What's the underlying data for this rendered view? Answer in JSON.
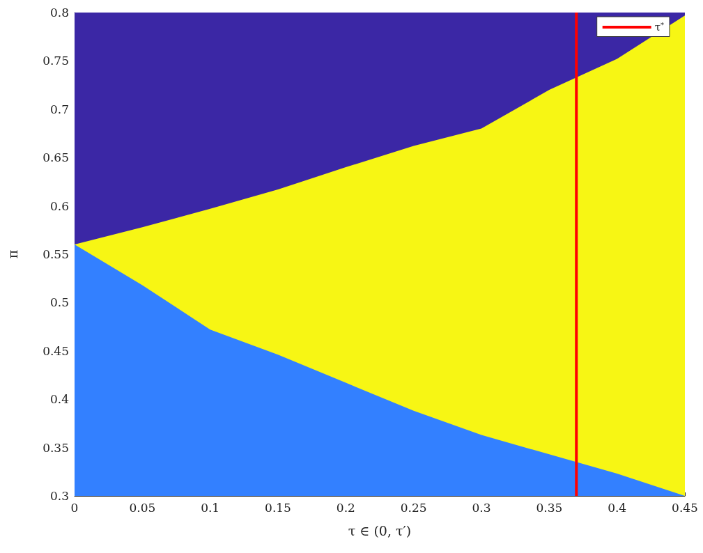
{
  "chart_data": {
    "type": "area",
    "xlabel": "τ ∈ (0, τ′)",
    "ylabel": "π",
    "x": [
      0,
      0.05,
      0.1,
      0.15,
      0.2,
      0.25,
      0.3,
      0.35,
      0.4,
      0.45
    ],
    "series": [
      {
        "color": "#3b27a5",
        "values": [
          0.8,
          0.8,
          0.8,
          0.8,
          0.8,
          0.8,
          0.8,
          0.8,
          0.8,
          0.8
        ]
      },
      {
        "color": "#f7f614",
        "values": [
          0.56,
          0.578,
          0.597,
          0.617,
          0.64,
          0.662,
          0.68,
          0.72,
          0.752,
          0.797
        ]
      },
      {
        "color": "#3380ff",
        "values": [
          0.56,
          0.518,
          0.472,
          0.446,
          0.417,
          0.388,
          0.363,
          0.343,
          0.323,
          0.3
        ]
      },
      {
        "type": "line",
        "name": "τ$^{*}$",
        "color": "#ff0000",
        "x": [
          0.37,
          0.37
        ],
        "values": [
          0.3,
          0.8
        ]
      }
    ],
    "xlim": [
      0,
      0.45
    ],
    "xticks": [
      0,
      0.05,
      0.1,
      0.15,
      0.2,
      0.25,
      0.3,
      0.35,
      0.4,
      0.45
    ],
    "ylim": [
      0.3,
      0.8
    ],
    "yticks": [
      0.3,
      0.35,
      0.4,
      0.45,
      0.5,
      0.55,
      0.6,
      0.65,
      0.7,
      0.75,
      0.8
    ],
    "legend": "top right",
    "grid": false
  }
}
